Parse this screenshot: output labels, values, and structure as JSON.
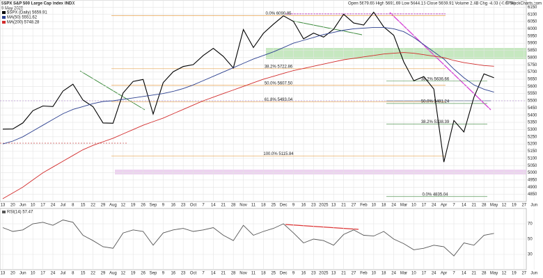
{
  "chart_data": [
    {
      "type": "line",
      "title": "$SPX S&P 500 Large Cap Index INDX",
      "subtitle": "9 May 2025",
      "header": "Open 5679.65  High 5691.69  Low 5644.15  Close 5659.91  Volume 2.4B  Chg -4.03 (-0.07%)",
      "source": "© StockCharts.com",
      "categories": [
        "13",
        "20",
        "Jun",
        "10",
        "17",
        "24",
        "Jul",
        "8",
        "15",
        "22",
        "29",
        "Aug",
        "12",
        "19",
        "26",
        "Sep",
        "9",
        "16",
        "23",
        "Oct",
        "7",
        "14",
        "21",
        "28",
        "Nov",
        "11",
        "18",
        "25",
        "Dec",
        "9",
        "16",
        "23",
        "2025",
        "13",
        "21",
        "27",
        "Feb",
        "10",
        "18",
        "24",
        "Mar",
        "10",
        "17",
        "24",
        "Apr",
        "7",
        "14",
        "21",
        "28",
        "May",
        "12",
        "19",
        "27",
        "Jun"
      ],
      "series": [
        {
          "name": "$SPX (Daily) 5659.91",
          "color": "#000000",
          "values": [
            5303,
            5304,
            5346,
            5431,
            5464,
            5460,
            5567,
            5615,
            5505,
            5459,
            5346,
            5344,
            5554,
            5634,
            5648,
            5408,
            5626,
            5702,
            5738,
            5751,
            5815,
            5864,
            5808,
            5728,
            5995,
            5870,
            5969,
            6032,
            6090,
            6051,
            5930,
            5970,
            5942,
            5997,
            6101,
            6040,
            6026,
            6115,
            6013,
            5955,
            5770,
            5639,
            5668,
            5581,
            5074,
            5363,
            5283,
            5525,
            5687,
            5660,
            null,
            null,
            null,
            null
          ]
        },
        {
          "name": "MA(50) 5551.62",
          "color": "#2b3f8f",
          "values": [
            5200,
            5220,
            5250,
            5290,
            5330,
            5370,
            5410,
            5440,
            5460,
            5480,
            5495,
            5500,
            5510,
            5520,
            5530,
            5540,
            5550,
            5565,
            5585,
            5610,
            5640,
            5670,
            5700,
            5730,
            5760,
            5790,
            5815,
            5840,
            5870,
            5900,
            5920,
            5940,
            5960,
            5975,
            5990,
            6000,
            6005,
            6010,
            6010,
            6000,
            5980,
            5940,
            5890,
            5840,
            5790,
            5720,
            5660,
            5610,
            5580,
            5560,
            null,
            null,
            null,
            null
          ]
        },
        {
          "name": "MA(200) 5748.28",
          "color": "#d22b2b",
          "values": [
            4820,
            4860,
            4900,
            4950,
            5000,
            5040,
            5080,
            5120,
            5160,
            5190,
            5215,
            5240,
            5270,
            5300,
            5330,
            5355,
            5380,
            5410,
            5440,
            5470,
            5500,
            5525,
            5550,
            5575,
            5600,
            5625,
            5650,
            5670,
            5690,
            5710,
            5725,
            5740,
            5755,
            5770,
            5785,
            5795,
            5805,
            5815,
            5825,
            5830,
            5835,
            5830,
            5820,
            5810,
            5800,
            5780,
            5765,
            5755,
            5745,
            5740,
            null,
            null,
            null,
            null
          ]
        }
      ],
      "ylim": [
        4800,
        6200
      ],
      "yticks": [
        4850,
        4900,
        4950,
        5000,
        5050,
        5100,
        5150,
        5200,
        5250,
        5300,
        5350,
        5400,
        5450,
        5500,
        5550,
        5600,
        5650,
        5700,
        5750,
        5800,
        5850,
        5900,
        5950,
        6000,
        6050,
        6100,
        6150
      ],
      "grid": true,
      "levels": [
        {
          "label": "0.0% 6090.85",
          "value": 6090.85,
          "color": "#e6a04d"
        },
        {
          "label": "38.2% 5722.86",
          "value": 5722.86,
          "color": "#e6a04d"
        },
        {
          "label": "50.0% 5607.50",
          "value": 5607.5,
          "color": "#e6a04d"
        },
        {
          "label": "61.8% 5493.04",
          "value": 5493.04,
          "color": "#e6a04d"
        },
        {
          "label": "100.0% 5115.84",
          "value": 5115.84,
          "color": "#e6a04d"
        },
        {
          "label": "38.2% 5636.66",
          "value": 5636.66,
          "color": "#5a9a5a"
        },
        {
          "label": "50.0% 5481.24",
          "value": 5481.24,
          "color": "#5a9a5a"
        },
        {
          "label": "38.2% 5338.39",
          "value": 5338.39,
          "color": "#5a9a5a"
        },
        {
          "label": "0.0% 4835.04",
          "value": 4835.04,
          "color": "#5a9a5a"
        }
      ]
    },
    {
      "type": "line",
      "categories": [
        "13",
        "20",
        "Jun",
        "10",
        "17",
        "24",
        "Jul",
        "8",
        "15",
        "22",
        "29",
        "Aug",
        "12",
        "19",
        "26",
        "Sep",
        "9",
        "16",
        "23",
        "Oct",
        "7",
        "14",
        "21",
        "28",
        "Nov",
        "11",
        "18",
        "25",
        "Dec",
        "9",
        "16",
        "23",
        "2025",
        "13",
        "21",
        "27",
        "Feb",
        "10",
        "18",
        "24",
        "Mar",
        "10",
        "17",
        "24",
        "Apr",
        "7",
        "14",
        "21",
        "28",
        "May",
        "12",
        "19",
        "27",
        "Jun"
      ],
      "series": [
        {
          "name": "RSI(14) 57.47",
          "color": "#555555",
          "values": [
            65,
            60,
            62,
            70,
            72,
            68,
            75,
            72,
            55,
            48,
            40,
            38,
            58,
            62,
            60,
            42,
            58,
            62,
            64,
            60,
            62,
            65,
            55,
            48,
            68,
            55,
            60,
            64,
            70,
            58,
            45,
            50,
            48,
            42,
            56,
            62,
            55,
            54,
            60,
            50,
            44,
            36,
            38,
            42,
            40,
            28,
            45,
            42,
            55,
            57.47,
            null,
            null,
            null,
            null
          ]
        }
      ],
      "ylim": [
        10,
        90
      ],
      "yticks": [
        30,
        50,
        70
      ],
      "grid": true
    }
  ]
}
